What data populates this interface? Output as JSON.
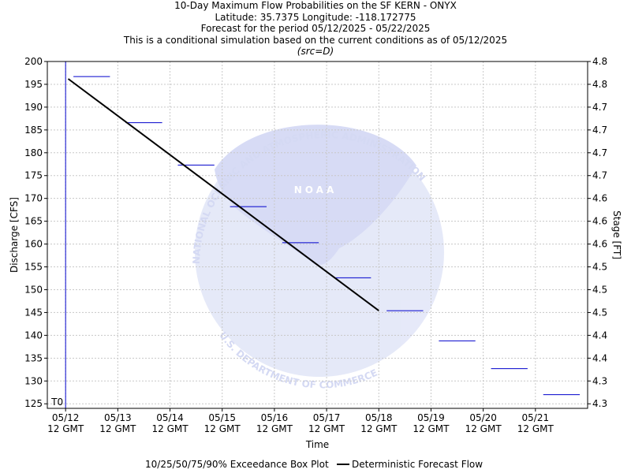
{
  "titles": {
    "line1": "10-Day Maximum Flow Probabilities on the SF KERN - ONYX",
    "line2": "Latitude: 35.7375 Longitude: -118.172775",
    "line3": "Forecast for the period 05/12/2025 - 05/22/2025",
    "line4": "This is a conditional simulation based on the current conditions as of 05/12/2025",
    "line5": "(src=D)"
  },
  "watermark": {
    "arc_text": "NATIONAL OCEANIC AND ATMOSPHERIC ADMINISTRATION",
    "bottom_text": "U.S. DEPARTMENT OF COMMERCE",
    "logo_text": "NOAA"
  },
  "chart_data": {
    "type": "line",
    "xlabel": "Time",
    "ylabel": "Discharge [CFS]",
    "y2label": "Stage [FT]",
    "ylim": [
      124,
      200
    ],
    "xlim": [
      -0.35,
      10.0
    ],
    "grid": true,
    "yticks": [
      125,
      130,
      135,
      140,
      145,
      150,
      155,
      160,
      165,
      170,
      175,
      180,
      185,
      190,
      195,
      200
    ],
    "y2ticks": [
      "4.3",
      "4.3",
      "4.4",
      "4.4",
      "4.5",
      "4.5",
      "4.5",
      "4.6",
      "4.6",
      "4.6",
      "4.7",
      "4.7",
      "4.7",
      "4.7",
      "4.8",
      "4.8"
    ],
    "xticks": [
      {
        "x": 0,
        "line1": "05/12",
        "line2": "12 GMT"
      },
      {
        "x": 1,
        "line1": "05/13",
        "line2": "12 GMT"
      },
      {
        "x": 2,
        "line1": "05/14",
        "line2": "12 GMT"
      },
      {
        "x": 3,
        "line1": "05/15",
        "line2": "12 GMT"
      },
      {
        "x": 4,
        "line1": "05/16",
        "line2": "12 GMT"
      },
      {
        "x": 5,
        "line1": "05/17",
        "line2": "12 GMT"
      },
      {
        "x": 6,
        "line1": "05/18",
        "line2": "12 GMT"
      },
      {
        "x": 7,
        "line1": "05/19",
        "line2": "12 GMT"
      },
      {
        "x": 8,
        "line1": "05/20",
        "line2": "12 GMT"
      },
      {
        "x": 9,
        "line1": "05/21",
        "line2": "12 GMT"
      }
    ],
    "t0_label": "T0",
    "t0_x": 0,
    "series": [
      {
        "name": "Deterministic Forecast Flow",
        "color": "#000000",
        "x": [
          0.05,
          6.0
        ],
        "y": [
          196.2,
          145.4
        ]
      },
      {
        "name": "10/25/50/75/90% Exceedance Box Plot",
        "color": "#0000cc",
        "segments": [
          {
            "x0": 0.15,
            "x1": 0.85,
            "y": 196.7
          },
          {
            "x0": 1.15,
            "x1": 1.85,
            "y": 186.6
          },
          {
            "x0": 2.15,
            "x1": 2.85,
            "y": 177.3
          },
          {
            "x0": 3.15,
            "x1": 3.85,
            "y": 168.2
          },
          {
            "x0": 4.15,
            "x1": 4.85,
            "y": 160.3
          },
          {
            "x0": 5.15,
            "x1": 5.85,
            "y": 152.6
          },
          {
            "x0": 6.15,
            "x1": 6.85,
            "y": 145.4
          },
          {
            "x0": 7.15,
            "x1": 7.85,
            "y": 138.8
          },
          {
            "x0": 8.15,
            "x1": 8.85,
            "y": 132.7
          },
          {
            "x0": 9.15,
            "x1": 9.85,
            "y": 127.0
          }
        ]
      }
    ],
    "legend": {
      "placement": "bottom",
      "box_label": "10/25/50/75/90% Exceedance Box Plot",
      "line_label": "Deterministic Forecast Flow"
    }
  }
}
